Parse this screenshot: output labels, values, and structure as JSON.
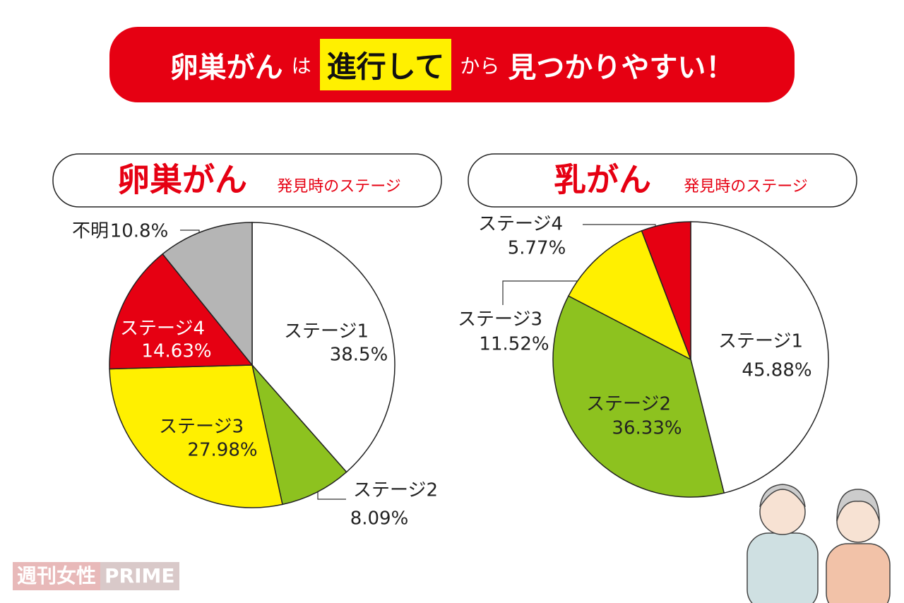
{
  "banner": {
    "parts": [
      "卵巣がん",
      "は",
      "進行して",
      "から",
      "見つかりやすい！"
    ]
  },
  "chart_data": [
    {
      "type": "pie",
      "title": "卵巣がん",
      "subtitle": "発見時のステージ",
      "categories": [
        "ステージ1",
        "ステージ2",
        "ステージ3",
        "ステージ4",
        "不明"
      ],
      "values": [
        38.5,
        8.09,
        27.98,
        14.63,
        10.8
      ],
      "value_labels": [
        "38.5%",
        "8.09%",
        "27.98%",
        "14.63%",
        "10.8%"
      ],
      "colors": [
        "#ffffff",
        "#8dc21f",
        "#fff000",
        "#e60012",
        "#b5b5b5"
      ]
    },
    {
      "type": "pie",
      "title": "乳がん",
      "subtitle": "発見時のステージ",
      "categories": [
        "ステージ1",
        "ステージ2",
        "ステージ3",
        "ステージ4"
      ],
      "values": [
        45.88,
        36.33,
        11.52,
        5.77
      ],
      "value_labels": [
        "45.88%",
        "36.33%",
        "11.52%",
        "5.77%"
      ],
      "colors": [
        "#ffffff",
        "#8dc21f",
        "#fff000",
        "#e60012"
      ]
    }
  ],
  "watermark": {
    "brand": "週刊女性",
    "suffix": "PRIME"
  }
}
